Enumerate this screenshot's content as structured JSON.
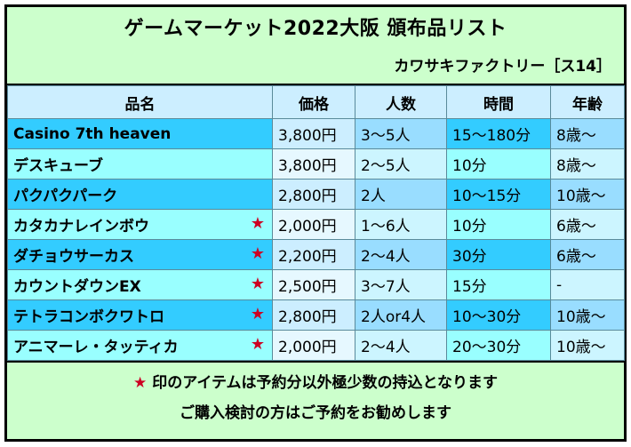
{
  "title": "ゲームマーケット2022大阪 頒布品リスト",
  "publisher": "カワサキファクトリー［ス14］",
  "columns": [
    "品名",
    "価格",
    "人数",
    "時間",
    "年齢"
  ],
  "rows": [
    {
      "name": "Casino 7th heaven",
      "star": "",
      "price": "3,800円",
      "players": "3～5人",
      "time": "15～180分",
      "age": "8歳～"
    },
    {
      "name": "デスキューブ",
      "star": "",
      "price": "3,800円",
      "players": "2～5人",
      "time": "10分",
      "age": "8歳～"
    },
    {
      "name": "パクパクパーク",
      "star": "",
      "price": "2,800円",
      "players": "2人",
      "time": "10～15分",
      "age": "10歳～"
    },
    {
      "name": "カタカナレインボウ",
      "star": "★",
      "price": "2,000円",
      "players": "1～6人",
      "time": "10分",
      "age": "6歳～"
    },
    {
      "name": "ダチョウサーカス",
      "star": "★",
      "price": "2,200円",
      "players": "2～4人",
      "time": "30分",
      "age": "6歳～"
    },
    {
      "name": "カウントダウンEX",
      "star": "★",
      "price": "2,500円",
      "players": "3～7人",
      "time": "15分",
      "age": "-"
    },
    {
      "name": "テトラコンボクワトロ",
      "star": "★",
      "price": "2,800円",
      "players": "2人or4人",
      "time": "10～30分",
      "age": "10歳～"
    },
    {
      "name": "アニマーレ・タッティカ",
      "star": "★",
      "price": "2,000円",
      "players": "2～4人",
      "time": "20～30分",
      "age": "10歳～"
    }
  ],
  "footer": {
    "star": "★",
    "note1": "印のアイテムは予約分以外極少数の持込となります",
    "note2": "ご購入検討の方はご予約をお勧めします"
  },
  "colors": {
    "background": "#ccffcc",
    "row_dark": "#33ccff",
    "row_light": "#99ffff",
    "star": "#cc0022"
  }
}
